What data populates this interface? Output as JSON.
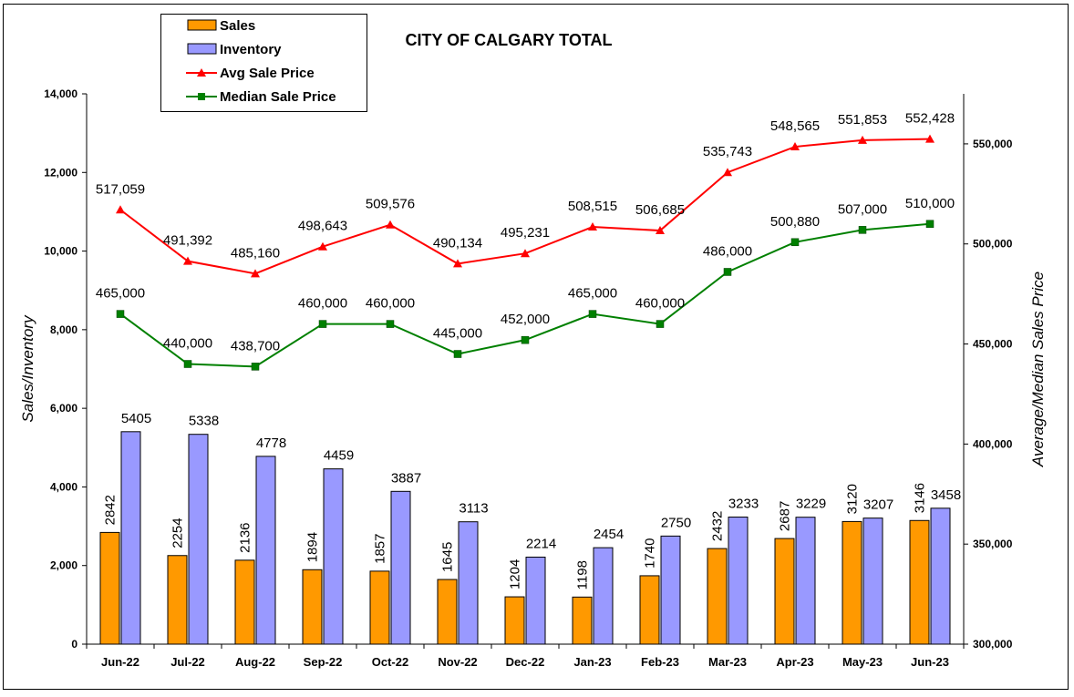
{
  "chart_data": {
    "type": "bar+line",
    "title": "CITY OF CALGARY TOTAL",
    "categories": [
      "Jun-22",
      "Jul-22",
      "Aug-22",
      "Sep-22",
      "Oct-22",
      "Nov-22",
      "Dec-22",
      "Jan-23",
      "Feb-23",
      "Mar-23",
      "Apr-23",
      "May-23",
      "Jun-23"
    ],
    "ylabel_left": "Sales/Inventory",
    "ylabel_right": "Average/Median Sales Price",
    "ylim_left": [
      0,
      14000
    ],
    "ylim_right": [
      300000,
      575000
    ],
    "yticks_left": [
      "0",
      "2,000",
      "4,000",
      "6,000",
      "8,000",
      "10,000",
      "12,000",
      "14,000"
    ],
    "yticks_right": [
      "300,000",
      "350,000",
      "400,000",
      "450,000",
      "500,000",
      "550,000"
    ],
    "legend_position": "top-left",
    "series": [
      {
        "name": "Sales",
        "type": "bar",
        "axis": "left",
        "color": "#FF9900",
        "values": [
          2842,
          2254,
          2136,
          1894,
          1857,
          1645,
          1204,
          1198,
          1740,
          2432,
          2687,
          3120,
          3146
        ],
        "labels": [
          "2842",
          "2254",
          "2136",
          "1894",
          "1857",
          "1645",
          "1204",
          "1198",
          "1740",
          "2432",
          "2687",
          "3120",
          "3146"
        ]
      },
      {
        "name": "Inventory",
        "type": "bar",
        "axis": "left",
        "color": "#9999FF",
        "values": [
          5405,
          5338,
          4778,
          4459,
          3887,
          3113,
          2214,
          2454,
          2750,
          3233,
          3229,
          3207,
          3458
        ],
        "labels": [
          "5405",
          "5338",
          "4778",
          "4459",
          "3887",
          "3113",
          "2214",
          "2454",
          "2750",
          "3233",
          "3229",
          "3207",
          "3458"
        ]
      },
      {
        "name": "Avg Sale Price",
        "type": "line",
        "axis": "right",
        "color": "#FF0000",
        "marker": "triangle",
        "values": [
          517059,
          491392,
          485160,
          498643,
          509576,
          490134,
          495231,
          508515,
          506685,
          535743,
          548565,
          551853,
          552428
        ],
        "labels": [
          "517,059",
          "491,392",
          "485,160",
          "498,643",
          "509,576",
          "490,134",
          "495,231",
          "508,515",
          "506,685",
          "535,743",
          "548,565",
          "551,853",
          "552,428"
        ]
      },
      {
        "name": "Median Sale Price",
        "type": "line",
        "axis": "right",
        "color": "#008000",
        "marker": "square",
        "values": [
          465000,
          440000,
          438700,
          460000,
          460000,
          445000,
          452000,
          465000,
          460000,
          486000,
          500880,
          507000,
          510000
        ],
        "labels": [
          "465,000",
          "440,000",
          "438,700",
          "460,000",
          "460,000",
          "445,000",
          "452,000",
          "465,000",
          "460,000",
          "486,000",
          "500,880",
          "507,000",
          "510,000"
        ]
      }
    ]
  }
}
